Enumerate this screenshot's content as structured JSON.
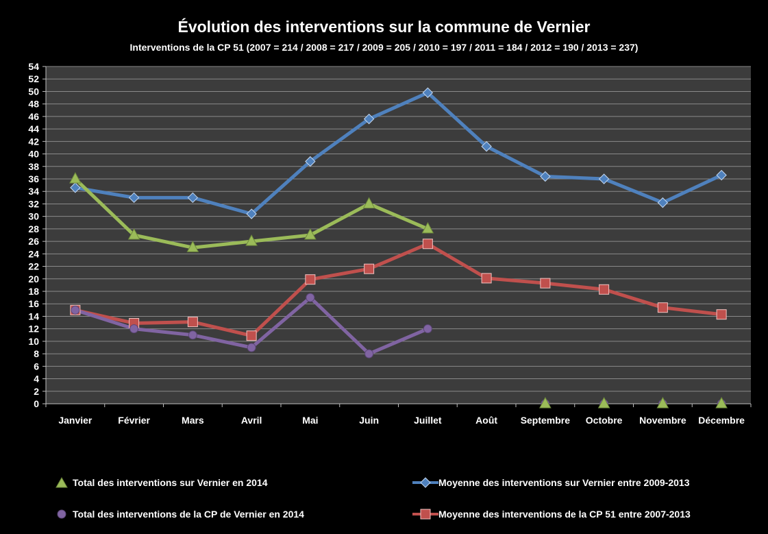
{
  "chart_data": {
    "type": "line",
    "title": "Évolution des interventions sur la commune de Vernier",
    "subtitle": "Interventions de la CP 51 (2007 = 214 /  2008 = 217 / 2009 = 205 / 2010 = 197 / 2011 = 184 / 2012 = 190 / 2013 = 237)",
    "categories": [
      "Janvier",
      "Février",
      "Mars",
      "Avril",
      "Mai",
      "Juin",
      "Juillet",
      "Août",
      "Septembre",
      "Octobre",
      "Novembre",
      "Décembre"
    ],
    "ylim": [
      0,
      54
    ],
    "yticks": [
      0,
      2,
      4,
      6,
      8,
      10,
      12,
      14,
      16,
      18,
      20,
      22,
      24,
      26,
      28,
      30,
      32,
      34,
      36,
      38,
      40,
      42,
      44,
      46,
      48,
      50,
      52,
      54
    ],
    "grid": true,
    "background": "#3c3c3c",
    "legend_position": "bottom",
    "series": [
      {
        "name": "Total des interventions sur Vernier en 2014",
        "color": "#9bbb59",
        "marker": "triangle",
        "values": [
          36,
          27,
          25,
          26,
          27,
          32,
          28,
          null,
          0,
          0,
          0,
          0
        ],
        "connect_from_index": 0,
        "line_until_index": 6
      },
      {
        "name": "Moyenne des interventions sur Vernier entre 2009-2013",
        "color": "#4f81bd",
        "marker": "diamond",
        "values": [
          34.6,
          33,
          33,
          30.4,
          38.8,
          45.6,
          49.8,
          41.2,
          36.4,
          36,
          32.2,
          36.6
        ]
      },
      {
        "name": "Total des interventions de la CP de Vernier en 2014",
        "color": "#8064a2",
        "marker": "circle",
        "values": [
          15,
          12,
          11,
          9,
          17,
          8,
          12,
          null,
          0,
          0,
          0,
          0
        ],
        "line_until_index": 6
      },
      {
        "name": "Moyenne des interventions de la CP 51 entre 2007-2013",
        "color": "#c0504d",
        "marker": "square",
        "values": [
          15,
          12.9,
          13.1,
          10.9,
          19.9,
          21.6,
          25.6,
          20.1,
          19.3,
          18.3,
          15.4,
          14.3
        ]
      }
    ]
  }
}
